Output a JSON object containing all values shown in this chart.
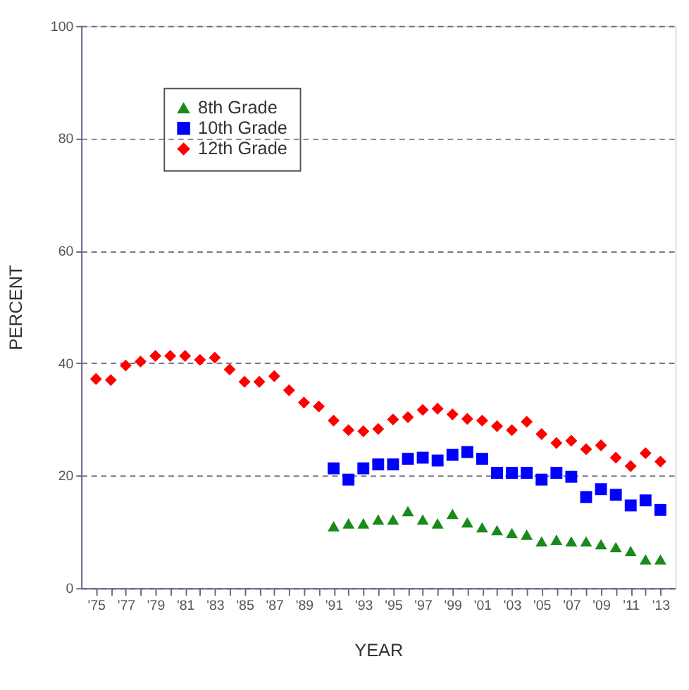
{
  "chart_data": {
    "type": "scatter",
    "xlabel": "YEAR",
    "ylabel": "PERCENT",
    "xlim": [
      1974,
      2014
    ],
    "ylim": [
      0,
      100
    ],
    "xticks": [
      {
        "value": 1975,
        "label": "'75"
      },
      {
        "value": 1976,
        "label": null
      },
      {
        "value": 1977,
        "label": "'77"
      },
      {
        "value": 1978,
        "label": null
      },
      {
        "value": 1979,
        "label": "'79"
      },
      {
        "value": 1980,
        "label": null
      },
      {
        "value": 1981,
        "label": "'81"
      },
      {
        "value": 1982,
        "label": null
      },
      {
        "value": 1983,
        "label": "'83"
      },
      {
        "value": 1984,
        "label": null
      },
      {
        "value": 1985,
        "label": "'85"
      },
      {
        "value": 1986,
        "label": null
      },
      {
        "value": 1987,
        "label": "'87"
      },
      {
        "value": 1988,
        "label": null
      },
      {
        "value": 1989,
        "label": "'89"
      },
      {
        "value": 1990,
        "label": null
      },
      {
        "value": 1991,
        "label": "'91"
      },
      {
        "value": 1992,
        "label": null
      },
      {
        "value": 1993,
        "label": "'93"
      },
      {
        "value": 1994,
        "label": null
      },
      {
        "value": 1995,
        "label": "'95"
      },
      {
        "value": 1996,
        "label": null
      },
      {
        "value": 1997,
        "label": "'97"
      },
      {
        "value": 1998,
        "label": null
      },
      {
        "value": 1999,
        "label": "'99"
      },
      {
        "value": 2000,
        "label": null
      },
      {
        "value": 2001,
        "label": "'01"
      },
      {
        "value": 2002,
        "label": null
      },
      {
        "value": 2003,
        "label": "'03"
      },
      {
        "value": 2004,
        "label": null
      },
      {
        "value": 2005,
        "label": "'05"
      },
      {
        "value": 2006,
        "label": null
      },
      {
        "value": 2007,
        "label": "'07"
      },
      {
        "value": 2008,
        "label": null
      },
      {
        "value": 2009,
        "label": "'09"
      },
      {
        "value": 2010,
        "label": null
      },
      {
        "value": 2011,
        "label": "'11"
      },
      {
        "value": 2012,
        "label": null
      },
      {
        "value": 2013,
        "label": "'13"
      }
    ],
    "yticks": [
      0,
      20,
      40,
      60,
      80,
      100
    ],
    "grid": "y",
    "legend": "top left",
    "series": [
      {
        "name": "8th Grade",
        "color": "#1a8a1a",
        "marker": "triangle",
        "x": [
          1991,
          1992,
          1993,
          1994,
          1995,
          1996,
          1997,
          1998,
          1999,
          2000,
          2001,
          2002,
          2003,
          2004,
          2005,
          2006,
          2007,
          2008,
          2009,
          2010,
          2011,
          2012,
          2013
        ],
        "values": [
          11,
          11.5,
          11.5,
          12.2,
          12.2,
          13.7,
          12.2,
          11.5,
          13.2,
          11.7,
          10.8,
          10.3,
          9.8,
          9.5,
          8.3,
          8.6,
          8.3,
          8.3,
          7.8,
          7.3,
          6.6,
          5.1,
          5.1
        ]
      },
      {
        "name": "10th Grade",
        "color": "#0000ff",
        "marker": "square",
        "x": [
          1991,
          1992,
          1993,
          1994,
          1995,
          1996,
          1997,
          1998,
          1999,
          2000,
          2001,
          2002,
          2003,
          2004,
          2005,
          2006,
          2007,
          2008,
          2009,
          2010,
          2011,
          2012,
          2013
        ],
        "values": [
          21.3,
          19.3,
          21.3,
          22,
          22,
          23,
          23.2,
          22.7,
          23.7,
          24.2,
          23,
          20.5,
          20.5,
          20.5,
          19.3,
          20.5,
          19.8,
          16.2,
          17.6,
          16.6,
          14.7,
          15.6,
          13.9
        ]
      },
      {
        "name": "12th Grade",
        "color": "#ff0000",
        "marker": "diamond",
        "x": [
          1975,
          1976,
          1977,
          1978,
          1979,
          1980,
          1981,
          1982,
          1983,
          1984,
          1985,
          1986,
          1987,
          1988,
          1989,
          1990,
          1991,
          1992,
          1993,
          1994,
          1995,
          1996,
          1997,
          1998,
          1999,
          2000,
          2001,
          2002,
          2003,
          2004,
          2005,
          2006,
          2007,
          2008,
          2009,
          2010,
          2011,
          2012,
          2013
        ],
        "values": [
          37.2,
          37,
          39.6,
          40.3,
          41.3,
          41.3,
          41.3,
          40.6,
          41,
          38.9,
          36.7,
          36.7,
          37.7,
          35.2,
          33,
          32.3,
          29.8,
          28.1,
          27.9,
          28.3,
          30,
          30.4,
          31.7,
          31.9,
          30.9,
          30.1,
          29.8,
          28.8,
          28.1,
          29.6,
          27.4,
          25.8,
          26.2,
          24.7,
          25.4,
          23.2,
          21.7,
          24,
          22.5
        ]
      }
    ]
  }
}
